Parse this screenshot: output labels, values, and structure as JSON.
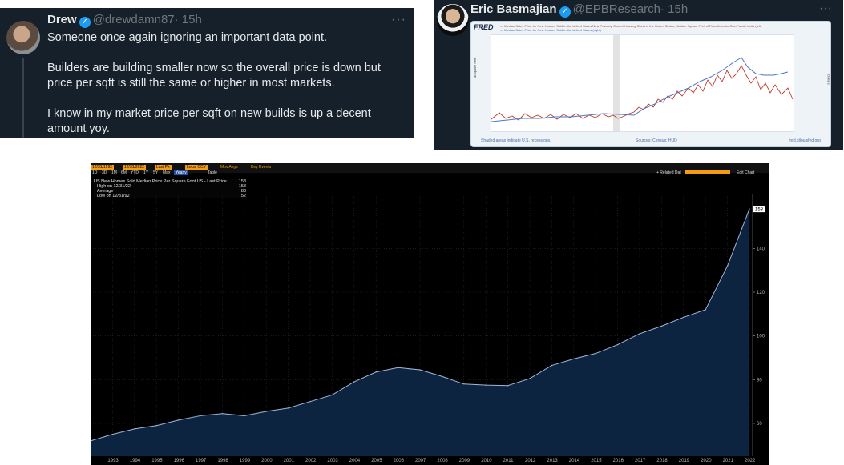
{
  "tweet_left": {
    "name": "Drew",
    "handle": "@drewdamn87",
    "time": "· 15h",
    "more": "···",
    "paragraphs": [
      "Someone once again ignoring an important data point.",
      "Builders are building smaller now so the overall price is down but price per sqft is still the same or higher in most markets.",
      "I know in my market price per sqft on new builds is up a decent amount yoy."
    ]
  },
  "tweet_right": {
    "name": "Eric Basmajian",
    "handle": "@EPBResearch",
    "time": "· 15h",
    "more": "···",
    "fred": {
      "logo": "FRED",
      "legend_1": "— Median Sales Price for New Houses Sold in the United States/New Privately Owned Housing Starts in the United States, Median Square Feet of Floor Area for One-Family Units (left)",
      "legend_2": "— Median Sales Price for New Houses Sold in the United States (right)",
      "left_axis_label": "$/Square Feet",
      "right_axis_label": "Dollars",
      "left_ticks": [
        "220",
        "210",
        "200",
        "190",
        "180",
        "170",
        "160",
        "150",
        "140",
        "130"
      ],
      "right_ticks": [
        "525,000",
        "500,000",
        "475,000",
        "450,000",
        "425,000",
        "400,000",
        "375,000",
        "350,000",
        "325,000",
        "300,000"
      ],
      "x_ticks": [
        "Jan 2018",
        "Jul 2018",
        "Jan 2019",
        "Jul 2019",
        "Jan 2020",
        "Jul 2020",
        "Jan 2021",
        "Jul 2021",
        "Jan 2022",
        "Jul 2022",
        "Jan 2023",
        "Jul 2023"
      ],
      "footer_left": "Shaded areas indicate U.S. recessions.",
      "footer_mid": "Sources: Census; HUD",
      "footer_right": "fred.stlouisfed.org",
      "colors": {
        "left_series": "#c0392b",
        "right_series": "#4a78c2"
      }
    }
  },
  "bloomberg": {
    "date_from": "12/31/1992",
    "date_to": "12/31/2022",
    "last_px": "Last Px",
    "currency": "Local CCY",
    "mov_avgs": "Mov Avgs",
    "key_events": "Key Events",
    "periods": [
      "1D",
      "3D",
      "1M",
      "6M",
      "YTD",
      "1Y",
      "5Y",
      "Max"
    ],
    "selected_period": "Yearly",
    "table": "Table",
    "related_dat": "+ Related Dat",
    "add_chart": "Edit Chart",
    "legend_title": "US New Homes Sold Median Price Per Square Foot US - Last Price",
    "legend_title_val": "158",
    "high_label": "High on 12/31/22",
    "high_val": "158",
    "avg_label": "Average",
    "avg_val": "83",
    "low_label": "Low on 12/31/92",
    "low_val": "52",
    "last_badge": "158"
  },
  "chart_data": {
    "type": "area",
    "x": [
      "1992",
      "1993",
      "1994",
      "1995",
      "1996",
      "1997",
      "1998",
      "1999",
      "2000",
      "2001",
      "2002",
      "2003",
      "2004",
      "2005",
      "2006",
      "2007",
      "2008",
      "2009",
      "2010",
      "2011",
      "2012",
      "2013",
      "2014",
      "2015",
      "2016",
      "2017",
      "2018",
      "2019",
      "2020",
      "2021",
      "2022"
    ],
    "values": [
      52,
      55,
      57.5,
      59,
      61.5,
      63.5,
      64.5,
      63.5,
      65.5,
      67,
      70,
      73,
      79,
      83.5,
      85.5,
      84.5,
      81.5,
      78,
      77.5,
      77.3,
      80.5,
      86.5,
      89.5,
      92,
      96,
      101,
      104.5,
      108.5,
      112,
      132,
      158
    ],
    "ylim": [
      45,
      165
    ],
    "y_ticks": [
      60,
      80,
      100,
      120,
      140
    ],
    "x_ticks": [
      "1993",
      "1994",
      "1995",
      "1996",
      "1997",
      "1998",
      "1999",
      "2000",
      "2001",
      "2002",
      "2003",
      "2004",
      "2005",
      "2006",
      "2007",
      "2008",
      "2009",
      "2010",
      "2011",
      "2012",
      "2013",
      "2014",
      "2015",
      "2016",
      "2017",
      "2018",
      "2019",
      "2020",
      "2021",
      "2022"
    ],
    "colors": {
      "line": "#9fb8d9",
      "fill": "#0d2440"
    }
  }
}
